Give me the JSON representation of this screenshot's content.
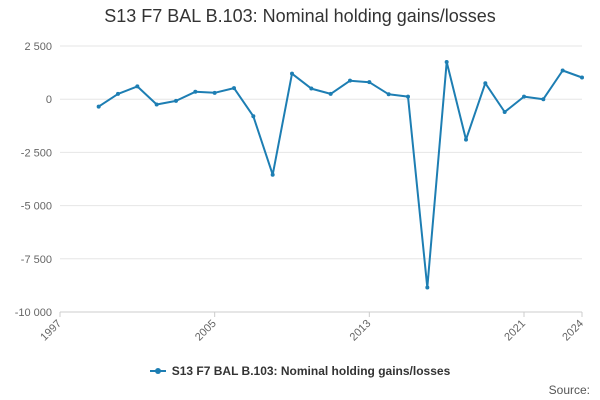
{
  "chart_data": {
    "type": "line",
    "title": "S13 F7 BAL B.103: Nominal holding gains/losses",
    "xlabel": "",
    "ylabel": "",
    "x": [
      1999,
      2000,
      2001,
      2002,
      2003,
      2004,
      2005,
      2006,
      2007,
      2008,
      2009,
      2010,
      2011,
      2012,
      2013,
      2014,
      2015,
      2016,
      2017,
      2018,
      2019,
      2020,
      2021,
      2022,
      2023,
      2024
    ],
    "series": [
      {
        "name": "S13 F7 BAL B.103: Nominal holding gains/losses",
        "values": [
          -350,
          250,
          600,
          -250,
          -80,
          350,
          300,
          520,
          -800,
          -3550,
          1200,
          500,
          250,
          870,
          800,
          230,
          120,
          -8850,
          1750,
          -1900,
          750,
          -600,
          120,
          0,
          1350,
          1020
        ]
      }
    ],
    "xlim": [
      1997,
      2024
    ],
    "ylim": [
      -10000,
      2500
    ],
    "y_ticks": [
      "2 500",
      "0",
      "-2 500",
      "-5 000",
      "-7 500",
      "-10 000"
    ],
    "x_ticks": [
      "1997",
      "2005",
      "2013",
      "2021",
      "2024"
    ],
    "grid": "horizontal",
    "legend_position": "bottom",
    "colors": {
      "series": "#1d7eb3",
      "grid": "#e6e6e6",
      "axis": "#cccccc",
      "tick_text": "#666666"
    }
  },
  "footer": {
    "source_label": "Source:"
  }
}
